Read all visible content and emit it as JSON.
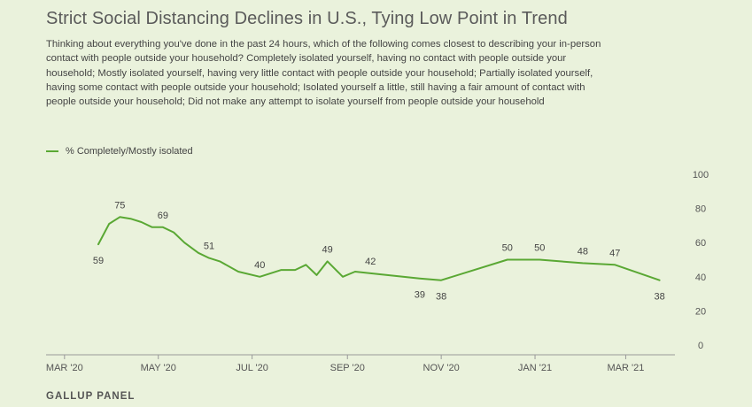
{
  "header": {
    "title": "Strict Social Distancing Declines in U.S., Tying Low Point in Trend",
    "subtitle": "Thinking about everything you've done in the past 24 hours, which of the following comes closest to describing your in-person contact with people outside your household? Completely isolated yourself, having no contact with people outside your household; Mostly isolated yourself, having very little contact with people outside your household; Partially isolated yourself, having some contact with people outside your household; Isolated yourself a little, still having a fair amount of contact with people outside your household; Did not make any attempt to isolate yourself from people outside your household"
  },
  "legend": {
    "label": "% Completely/Mostly isolated"
  },
  "source": "GALLUP PANEL",
  "colors": {
    "line": "#5aa834",
    "axis": "#999999",
    "background": "#eaf2dc"
  },
  "chart_data": {
    "type": "line",
    "title": "Strict Social Distancing Declines in U.S., Tying Low Point in Trend",
    "xlabel": "",
    "ylabel": "",
    "ylim": [
      0,
      100
    ],
    "yticks": [
      0,
      20,
      40,
      60,
      80,
      100
    ],
    "xticks": [
      {
        "label": "MAR '20",
        "date": "2020-03-01"
      },
      {
        "label": "MAY '20",
        "date": "2020-05-01"
      },
      {
        "label": "JUL '20",
        "date": "2020-07-01"
      },
      {
        "label": "SEP '20",
        "date": "2020-09-01"
      },
      {
        "label": "NOV '20",
        "date": "2020-11-01"
      },
      {
        "label": "JAN '21",
        "date": "2021-01-01"
      },
      {
        "label": "MAR '21",
        "date": "2021-03-01"
      }
    ],
    "grid": false,
    "legend_position": "top-left",
    "series": [
      {
        "name": "% Completely/Mostly isolated",
        "points": [
          {
            "date": "2020-03-23",
            "value": 59,
            "label": "59",
            "label_pos": "below"
          },
          {
            "date": "2020-03-30",
            "value": 71
          },
          {
            "date": "2020-04-06",
            "value": 75,
            "label": "75",
            "label_pos": "above"
          },
          {
            "date": "2020-04-13",
            "value": 74
          },
          {
            "date": "2020-04-20",
            "value": 72
          },
          {
            "date": "2020-04-27",
            "value": 69
          },
          {
            "date": "2020-05-04",
            "value": 69,
            "label": "69",
            "label_pos": "above"
          },
          {
            "date": "2020-05-11",
            "value": 66
          },
          {
            "date": "2020-05-18",
            "value": 60
          },
          {
            "date": "2020-05-27",
            "value": 54
          },
          {
            "date": "2020-06-03",
            "value": 51,
            "label": "51",
            "label_pos": "above"
          },
          {
            "date": "2020-06-10",
            "value": 49
          },
          {
            "date": "2020-06-22",
            "value": 43
          },
          {
            "date": "2020-07-06",
            "value": 40,
            "label": "40",
            "label_pos": "above"
          },
          {
            "date": "2020-07-20",
            "value": 44
          },
          {
            "date": "2020-07-29",
            "value": 44
          },
          {
            "date": "2020-08-05",
            "value": 47
          },
          {
            "date": "2020-08-12",
            "value": 41
          },
          {
            "date": "2020-08-19",
            "value": 49,
            "label": "49",
            "label_pos": "above"
          },
          {
            "date": "2020-08-29",
            "value": 40
          },
          {
            "date": "2020-09-06",
            "value": 43
          },
          {
            "date": "2020-09-16",
            "value": 42,
            "label": "42",
            "label_pos": "above"
          },
          {
            "date": "2020-10-18",
            "value": 39,
            "label": "39",
            "label_pos": "below"
          },
          {
            "date": "2020-11-01",
            "value": 38,
            "label": "38",
            "label_pos": "below"
          },
          {
            "date": "2020-12-14",
            "value": 50,
            "label": "50",
            "label_pos": "above"
          },
          {
            "date": "2021-01-04",
            "value": 50,
            "label": "50",
            "label_pos": "above"
          },
          {
            "date": "2021-02-01",
            "value": 48,
            "label": "48",
            "label_pos": "above"
          },
          {
            "date": "2021-02-22",
            "value": 47,
            "label": "47",
            "label_pos": "above"
          },
          {
            "date": "2021-03-23",
            "value": 38,
            "label": "38",
            "label_pos": "below"
          }
        ]
      }
    ]
  }
}
